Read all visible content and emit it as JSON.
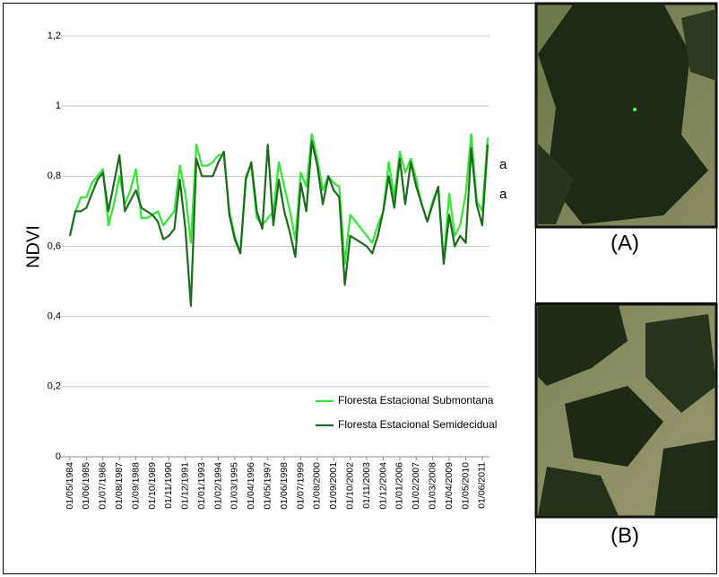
{
  "chart_data": {
    "type": "line",
    "ylabel": "NDVI",
    "ylim": [
      0,
      1.2
    ],
    "yticks": [
      0,
      {
        "value": 0.2,
        "label": "0,2"
      },
      {
        "value": 0.4,
        "label": "0,4"
      },
      {
        "value": 0.6,
        "label": "0,6"
      },
      {
        "value": 0.8,
        "label": "0,8"
      },
      1,
      {
        "value": 1.2,
        "label": "1,2"
      }
    ],
    "grid": true,
    "legend": "lower right",
    "categories": [
      "01/05/1984",
      null,
      null,
      "01/06/1985",
      null,
      null,
      "01/07/1986",
      null,
      null,
      "01/08/1987",
      null,
      null,
      "01/09/1988",
      null,
      null,
      "01/10/1989",
      null,
      null,
      "01/11/1990",
      null,
      null,
      "01/12/1991",
      null,
      null,
      "01/01/1993",
      null,
      null,
      "01/02/1994",
      null,
      null,
      "01/03/1995",
      null,
      null,
      "01/04/1996",
      null,
      null,
      "01/05/1997",
      null,
      null,
      "01/06/1998",
      null,
      null,
      "01/07/1999",
      null,
      null,
      "01/08/2000",
      null,
      null,
      "01/09/2001",
      null,
      null,
      "01/10/2002",
      null,
      null,
      "01/11/2003",
      null,
      null,
      "01/12/2004",
      null,
      null,
      "01/01/2006",
      null,
      null,
      "01/02/2007",
      null,
      null,
      "01/03/2008",
      null,
      null,
      "01/04/2009",
      null,
      null,
      "01/05/2010",
      null,
      null,
      "01/06/2011",
      null
    ],
    "series": [
      {
        "name": "Floresta Estacional Submontana",
        "color": "#33e633",
        "values": [
          0.63,
          0.7,
          0.74,
          0.74,
          0.78,
          0.8,
          0.82,
          0.66,
          0.72,
          0.8,
          0.72,
          0.76,
          0.82,
          0.68,
          0.68,
          0.69,
          0.7,
          0.66,
          0.68,
          0.7,
          0.83,
          0.75,
          0.61,
          0.89,
          0.83,
          0.83,
          0.84,
          0.86,
          0.86,
          0.7,
          0.63,
          0.58,
          0.8,
          0.83,
          0.68,
          0.66,
          0.68,
          0.7,
          0.84,
          0.77,
          0.7,
          0.62,
          0.81,
          0.77,
          0.92,
          0.85,
          0.76,
          0.8,
          0.78,
          0.77,
          0.55,
          0.69,
          0.67,
          0.65,
          0.63,
          0.61,
          0.66,
          0.7,
          0.84,
          0.74,
          0.87,
          0.81,
          0.85,
          0.79,
          0.72,
          0.67,
          0.73,
          0.77,
          0.56,
          0.75,
          0.63,
          0.66,
          0.75,
          0.92,
          0.73,
          0.7,
          0.91
        ]
      },
      {
        "name": "Floresta Estacional Semidecidual",
        "color": "#1a6b1a",
        "values": [
          0.63,
          0.7,
          0.7,
          0.71,
          0.75,
          0.79,
          0.81,
          0.7,
          0.78,
          0.86,
          0.7,
          0.73,
          0.76,
          0.71,
          0.7,
          0.69,
          0.67,
          0.62,
          0.63,
          0.65,
          0.79,
          0.65,
          0.43,
          0.85,
          0.8,
          0.8,
          0.8,
          0.84,
          0.87,
          0.69,
          0.62,
          0.58,
          0.79,
          0.84,
          0.7,
          0.65,
          0.89,
          0.66,
          0.79,
          0.7,
          0.64,
          0.57,
          0.78,
          0.7,
          0.9,
          0.83,
          0.72,
          0.8,
          0.76,
          0.74,
          0.49,
          0.63,
          0.62,
          0.61,
          0.6,
          0.58,
          0.63,
          0.7,
          0.8,
          0.71,
          0.85,
          0.72,
          0.84,
          0.77,
          0.72,
          0.67,
          0.72,
          0.77,
          0.55,
          0.69,
          0.6,
          0.63,
          0.61,
          0.88,
          0.72,
          0.66,
          0.89
        ]
      }
    ],
    "annotations": [
      "a",
      "a"
    ]
  },
  "images": [
    {
      "caption": "(A)"
    },
    {
      "caption": "(B)"
    }
  ]
}
